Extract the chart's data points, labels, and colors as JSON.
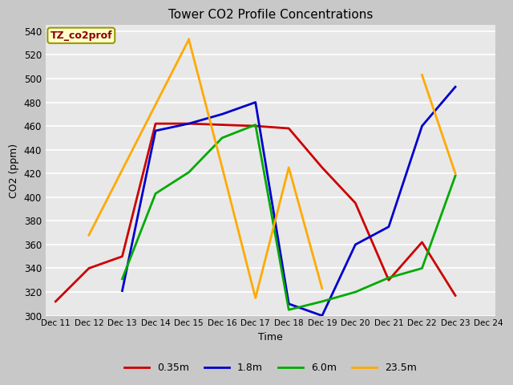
{
  "title": "Tower CO2 Profile Concentrations",
  "xlabel": "Time",
  "ylabel": "CO2 (ppm)",
  "annotation": "TZ_co2prof",
  "fig_bg_color": "#c8c8c8",
  "plot_bg_color": "#e8e8e8",
  "ylim": [
    300,
    545
  ],
  "yticks": [
    300,
    320,
    340,
    360,
    380,
    400,
    420,
    440,
    460,
    480,
    500,
    520,
    540
  ],
  "x_labels": [
    "Dec 11",
    "Dec 12",
    "Dec 13",
    "Dec 14",
    "Dec 15",
    "Dec 16",
    "Dec 17",
    "Dec 18",
    "Dec 19",
    "Dec 20",
    "Dec 21",
    "Dec 22",
    "Dec 23",
    "Dec 24"
  ],
  "series": [
    {
      "label": "0.35m",
      "color": "#cc0000",
      "x": [
        0,
        1,
        2,
        3,
        4,
        5,
        6,
        7,
        8,
        9,
        10,
        11,
        12
      ],
      "y": [
        312,
        340,
        350,
        462,
        462,
        461,
        460,
        458,
        425,
        395,
        330,
        362,
        317
      ]
    },
    {
      "label": "1.8m",
      "color": "#0000cc",
      "x": [
        2,
        3,
        4,
        5,
        6,
        7,
        8,
        9,
        10,
        11,
        12
      ],
      "y": [
        321,
        456,
        462,
        470,
        480,
        310,
        300,
        360,
        375,
        460,
        493
      ]
    },
    {
      "label": "6.0m",
      "color": "#00aa00",
      "x": [
        2,
        3,
        4,
        5,
        6,
        7,
        8,
        9,
        10,
        11,
        12
      ],
      "y": [
        331,
        403,
        421,
        450,
        461,
        305,
        312,
        320,
        332,
        340,
        418
      ]
    },
    {
      "label": "23.5m",
      "color": "#ffaa00",
      "segments": [
        {
          "x": [
            1,
            4
          ],
          "y": [
            368,
            533
          ]
        },
        {
          "x": [
            4,
            5,
            6,
            7,
            8
          ],
          "y": [
            533,
            425,
            315,
            425,
            323
          ]
        },
        {
          "x": [
            11,
            12
          ],
          "y": [
            503,
            420
          ]
        }
      ]
    }
  ]
}
